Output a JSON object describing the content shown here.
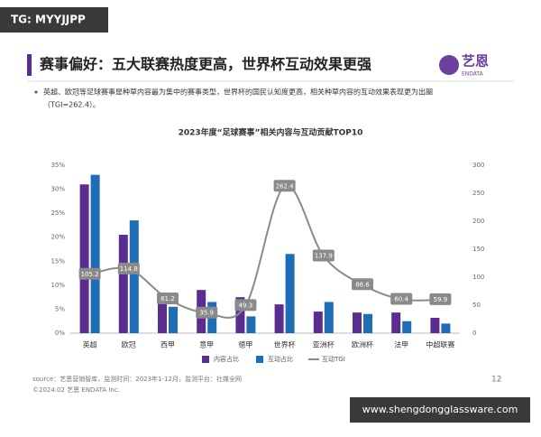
{
  "watermark": "TG: MYYJJPP",
  "slide_title": "赛事偏好：五大联赛热度更高，世界杯互动效果更强",
  "logo": "艺恩",
  "logo_sub": "ENDATA",
  "bullet": [
    "英超、欧冠等足球赛事是种草内容最为集中的赛事类型，世界杯的国民认知度更高，相关种草内容的互动效果表现更为出圈",
    "（TGI=262.4）。"
  ],
  "source": "source：艺恩营销智库，监测时间：2023年1-12月，监测平台：社媒全网",
  "copyright": "©2024.02 艺恩 ENDATA Inc.",
  "page_number": "12",
  "footer_watermark": "www.shengdongglassware.com",
  "chart_data": {
    "type": "bar-line",
    "title": "2023年度“足球赛事”相关内容与互动贡献TOP10",
    "categories": [
      "英超",
      "欧冠",
      "西甲",
      "意甲",
      "德甲",
      "世界杯",
      "亚洲杯",
      "欧洲杯",
      "法甲",
      "中超联赛"
    ],
    "series": [
      {
        "name": "内容占比",
        "type": "bar",
        "color": "#5b2d90",
        "values": [
          31,
          20.5,
          8,
          9,
          7.5,
          6,
          4.5,
          4.3,
          4.3,
          3.2
        ]
      },
      {
        "name": "互动占比",
        "type": "bar",
        "color": "#1e6db5",
        "values": [
          33,
          23.5,
          5.5,
          6.5,
          3.5,
          16.5,
          6.5,
          4,
          2.5,
          2
        ]
      },
      {
        "name": "互动TGI",
        "type": "line",
        "axis": "y2",
        "color": "#8a8a8a",
        "values": [
          105.2,
          114.8,
          61.2,
          35.9,
          49.3,
          262.4,
          137.9,
          86.6,
          60.4,
          59.9
        ]
      }
    ],
    "ylim": [
      0,
      35
    ],
    "yticks": [
      {
        "value": 0,
        "label": "0%"
      },
      {
        "value": 5,
        "label": "5%"
      },
      {
        "value": 10,
        "label": "10%"
      },
      {
        "value": 15,
        "label": "15%"
      },
      {
        "value": 20,
        "label": "20%"
      },
      {
        "value": 25,
        "label": "25%"
      },
      {
        "value": 30,
        "label": "30%"
      },
      {
        "value": 35,
        "label": "35%"
      }
    ],
    "y2lim": [
      0,
      300
    ],
    "y2ticks": [
      0,
      50,
      100,
      150,
      200,
      250,
      300
    ],
    "grid": false,
    "legend": "bottom"
  }
}
